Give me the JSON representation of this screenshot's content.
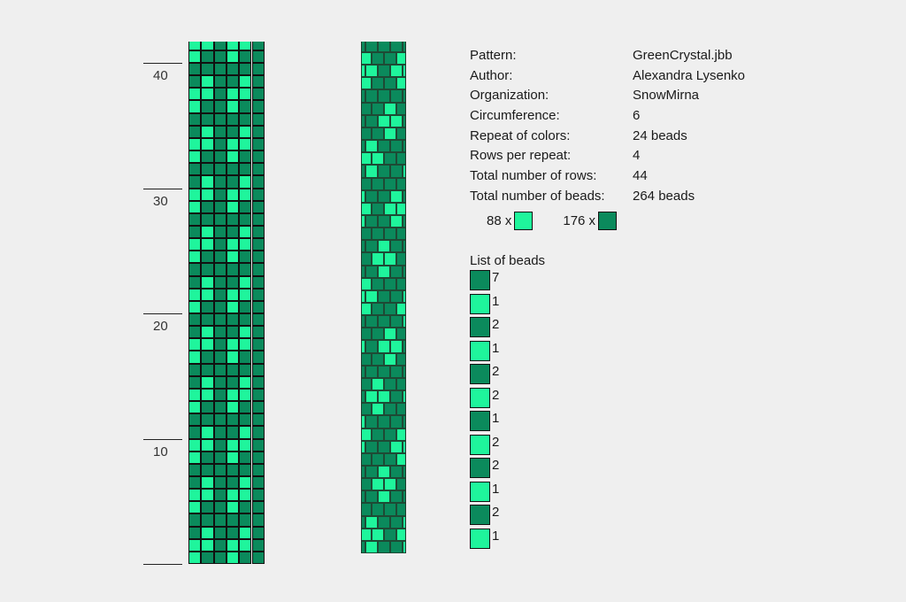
{
  "colors": {
    "light": "#1ff59c",
    "dark": "#0b8a5c",
    "background": "#efefef"
  },
  "ruler": {
    "labels": [
      "40",
      "30",
      "20",
      "10"
    ]
  },
  "pattern": {
    "rows": 44,
    "columns": 6,
    "rows_from_bottom_cycle": [
      [
        "L",
        "D",
        "D",
        "L",
        "D",
        "D"
      ],
      [
        "L",
        "L",
        "D",
        "L",
        "L",
        "D"
      ],
      [
        "D",
        "L",
        "D",
        "D",
        "L",
        "D"
      ],
      [
        "D",
        "D",
        "D",
        "D",
        "D",
        "D"
      ]
    ]
  },
  "info": {
    "rows": [
      {
        "label": "Pattern:",
        "value": "GreenCrystal.jbb"
      },
      {
        "label": "Author:",
        "value": "Alexandra Lysenko"
      },
      {
        "label": "Organization:",
        "value": "SnowMirna"
      },
      {
        "label": "Circumference:",
        "value": "6"
      },
      {
        "label": "Repeat of colors:",
        "value": "24 beads"
      },
      {
        "label": "Rows per repeat:",
        "value": "4"
      },
      {
        "label": "Total number of rows:",
        "value": "44"
      },
      {
        "label": "Total number of beads:",
        "value": "264 beads"
      }
    ],
    "light_count": "88 x",
    "dark_count": "176 x"
  },
  "bead_list": {
    "title": "List of beads",
    "items": [
      {
        "color": "dark",
        "count": "7"
      },
      {
        "color": "light",
        "count": "1"
      },
      {
        "color": "dark",
        "count": "2"
      },
      {
        "color": "light",
        "count": "1"
      },
      {
        "color": "dark",
        "count": "2"
      },
      {
        "color": "light",
        "count": "2"
      },
      {
        "color": "dark",
        "count": "1"
      },
      {
        "color": "light",
        "count": "2"
      },
      {
        "color": "dark",
        "count": "2"
      },
      {
        "color": "light",
        "count": "1"
      },
      {
        "color": "dark",
        "count": "2"
      },
      {
        "color": "light",
        "count": "1"
      }
    ]
  }
}
